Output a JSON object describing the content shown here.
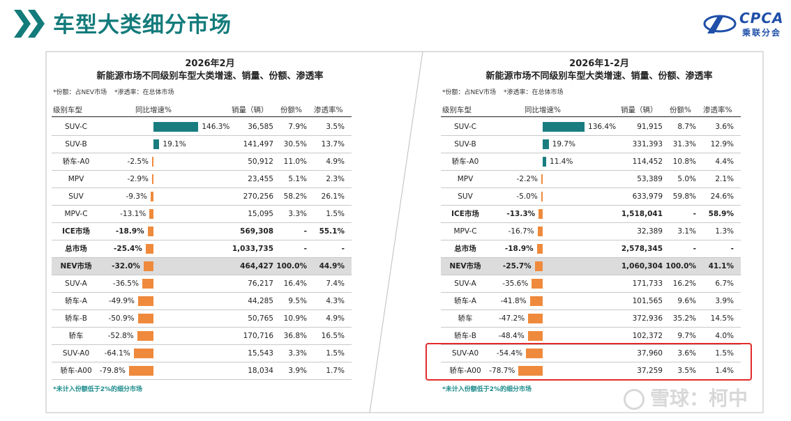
{
  "page": {
    "title": "车型大类细分市场"
  },
  "logo": {
    "brand": "CPCA",
    "sub": "乘联分会"
  },
  "panels": [
    {
      "title_line1": "2026年2月",
      "title_line2": "新能源市场不同级别车型大类增速、销量、份额、渗透率",
      "note_share": "*份额：占NEV市场",
      "note_penetration": "*渗透率：在总体市场",
      "col_type": "级别车型",
      "col_growth": "同比增速%",
      "col_sales": "销量（辆）",
      "col_share": "份额%",
      "col_penetration": "渗透率%",
      "footnote": "*未计入份额低于2%的细分市场"
    },
    {
      "title_line1": "2026年1-2月",
      "title_line2": "新能源市场不同级别车型大类增速、销量、份额、渗透率",
      "note_share": "*份额：占NEV市场",
      "note_penetration": "*渗透率：在总体市场",
      "col_type": "级别车型",
      "col_growth": "同比增速%",
      "col_sales": "销量（辆）",
      "col_share": "份额%",
      "col_penetration": "渗透率%",
      "footnote": "*未计入份额低于2%的细分市场"
    }
  ],
  "colors": {
    "accent": "#147b7b",
    "positive_bar": "#197d80",
    "negative_bar": "#ef8a3c",
    "highlight_box": "#e22a2a"
  },
  "chart_data": [
    {
      "type": "table",
      "title": "2026年2月 新能源市场不同级别车型大类增速、销量、份额、渗透率",
      "columns": [
        "级别车型",
        "同比增速%",
        "销量（辆）",
        "份额%",
        "渗透率%"
      ],
      "rows": [
        {
          "name": "SUV-C",
          "growth": 146.3,
          "growth_label": "146.3%",
          "sales": "36,585",
          "share": "7.9%",
          "penetration": "3.5%"
        },
        {
          "name": "SUV-B",
          "growth": 19.1,
          "growth_label": "19.1%",
          "sales": "141,497",
          "share": "30.5%",
          "penetration": "13.7%"
        },
        {
          "name": "轿车-A0",
          "growth": -2.5,
          "growth_label": "-2.5%",
          "sales": "50,912",
          "share": "11.0%",
          "penetration": "4.9%"
        },
        {
          "name": "MPV",
          "growth": -2.9,
          "growth_label": "-2.9%",
          "sales": "23,455",
          "share": "5.1%",
          "penetration": "2.3%"
        },
        {
          "name": "SUV",
          "growth": -9.3,
          "growth_label": "-9.3%",
          "sales": "270,256",
          "share": "58.2%",
          "penetration": "26.1%"
        },
        {
          "name": "MPV-C",
          "growth": -13.1,
          "growth_label": "-13.1%",
          "sales": "15,095",
          "share": "3.3%",
          "penetration": "1.5%"
        },
        {
          "name": "ICE市场",
          "growth": -18.9,
          "growth_label": "-18.9%",
          "sales": "569,308",
          "share": "-",
          "penetration": "55.1%",
          "bold": true
        },
        {
          "name": "总市场",
          "growth": -25.4,
          "growth_label": "-25.4%",
          "sales": "1,033,735",
          "share": "-",
          "penetration": "-",
          "bold": true
        },
        {
          "name": "NEV市场",
          "growth": -32.0,
          "growth_label": "-32.0%",
          "sales": "464,427",
          "share": "100.0%",
          "penetration": "44.9%",
          "bold": true,
          "highlight": true
        },
        {
          "name": "SUV-A",
          "growth": -36.5,
          "growth_label": "-36.5%",
          "sales": "76,217",
          "share": "16.4%",
          "penetration": "7.4%"
        },
        {
          "name": "轿车-A",
          "growth": -49.9,
          "growth_label": "-49.9%",
          "sales": "44,285",
          "share": "9.5%",
          "penetration": "4.3%"
        },
        {
          "name": "轿车-B",
          "growth": -50.9,
          "growth_label": "-50.9%",
          "sales": "50,765",
          "share": "10.9%",
          "penetration": "4.9%"
        },
        {
          "name": "轿车",
          "growth": -52.8,
          "growth_label": "-52.8%",
          "sales": "170,716",
          "share": "36.8%",
          "penetration": "16.5%"
        },
        {
          "name": "SUV-A0",
          "growth": -64.1,
          "growth_label": "-64.1%",
          "sales": "15,543",
          "share": "3.3%",
          "penetration": "1.5%"
        },
        {
          "name": "轿车-A00",
          "growth": -79.8,
          "growth_label": "-79.8%",
          "sales": "18,034",
          "share": "3.9%",
          "penetration": "1.7%"
        }
      ]
    },
    {
      "type": "table",
      "title": "2026年1-2月 新能源市场不同级别车型大类增速、销量、份额、渗透率",
      "columns": [
        "级别车型",
        "同比增速%",
        "销量（辆）",
        "份额%",
        "渗透率%"
      ],
      "rows": [
        {
          "name": "SUV-C",
          "growth": 136.4,
          "growth_label": "136.4%",
          "sales": "91,915",
          "share": "8.7%",
          "penetration": "3.6%"
        },
        {
          "name": "SUV-B",
          "growth": 19.7,
          "growth_label": "19.7%",
          "sales": "331,393",
          "share": "31.3%",
          "penetration": "12.9%"
        },
        {
          "name": "轿车-A0",
          "growth": 11.4,
          "growth_label": "11.4%",
          "sales": "114,452",
          "share": "10.8%",
          "penetration": "4.4%"
        },
        {
          "name": "MPV",
          "growth": -2.2,
          "growth_label": "-2.2%",
          "sales": "53,389",
          "share": "5.0%",
          "penetration": "2.1%"
        },
        {
          "name": "SUV",
          "growth": -5.0,
          "growth_label": "-5.0%",
          "sales": "633,979",
          "share": "59.8%",
          "penetration": "24.6%"
        },
        {
          "name": "ICE市场",
          "growth": -13.3,
          "growth_label": "-13.3%",
          "sales": "1,518,041",
          "share": "-",
          "penetration": "58.9%",
          "bold": true
        },
        {
          "name": "MPV-C",
          "growth": -16.7,
          "growth_label": "-16.7%",
          "sales": "32,389",
          "share": "3.1%",
          "penetration": "1.3%"
        },
        {
          "name": "总市场",
          "growth": -18.9,
          "growth_label": "-18.9%",
          "sales": "2,578,345",
          "share": "-",
          "penetration": "-",
          "bold": true
        },
        {
          "name": "NEV市场",
          "growth": -25.7,
          "growth_label": "-25.7%",
          "sales": "1,060,304",
          "share": "100.0%",
          "penetration": "41.1%",
          "bold": true,
          "highlight": true
        },
        {
          "name": "SUV-A",
          "growth": -35.6,
          "growth_label": "-35.6%",
          "sales": "171,733",
          "share": "16.2%",
          "penetration": "6.7%"
        },
        {
          "name": "轿车-A",
          "growth": -41.8,
          "growth_label": "-41.8%",
          "sales": "101,565",
          "share": "9.6%",
          "penetration": "3.9%"
        },
        {
          "name": "轿车",
          "growth": -47.2,
          "growth_label": "-47.2%",
          "sales": "372,936",
          "share": "35.2%",
          "penetration": "14.5%"
        },
        {
          "name": "轿车-B",
          "growth": -48.4,
          "growth_label": "-48.4%",
          "sales": "102,372",
          "share": "9.7%",
          "penetration": "4.0%"
        },
        {
          "name": "SUV-A0",
          "growth": -54.4,
          "growth_label": "-54.4%",
          "sales": "37,960",
          "share": "3.6%",
          "penetration": "1.5%",
          "boxed": true
        },
        {
          "name": "轿车-A00",
          "growth": -78.7,
          "growth_label": "-78.7%",
          "sales": "37,259",
          "share": "3.5%",
          "penetration": "1.4%",
          "boxed": true
        }
      ]
    }
  ],
  "watermark": {
    "text": "雪球：柯中"
  }
}
